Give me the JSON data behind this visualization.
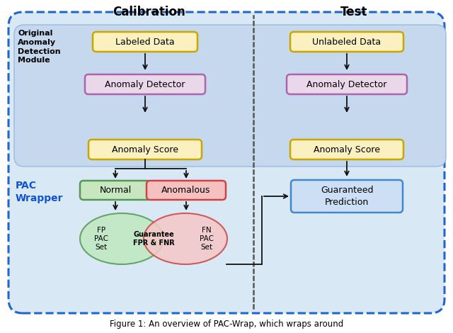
{
  "calibration_label": "Calibration",
  "test_label": "Test",
  "outer_bg_color": "#d8e8f5",
  "outer_border_color": "#2266cc",
  "inner_bg_color": "#c2d8ee",
  "inner_border_color": "#99bbdd",
  "labeled_data_text": "Labeled Data",
  "labeled_data_bg": "#faf0c0",
  "labeled_data_border": "#c8a800",
  "anomaly_detector_text": "Anomaly Detector",
  "anomaly_detector_bg": "#ead8ea",
  "anomaly_detector_border": "#aa66aa",
  "anomaly_score_text": "Anomaly Score",
  "anomaly_score_bg": "#faf0c0",
  "anomaly_score_border": "#c8a800",
  "unlabeled_data_text": "Unlabeled Data",
  "normal_text": "Normal",
  "normal_bg": "#c8e6c0",
  "normal_border": "#559955",
  "anomalous_text": "Anomalous",
  "anomalous_bg": "#f5c0c0",
  "anomalous_border": "#cc4444",
  "guaranteed_text": "Guaranteed\nPrediction",
  "guaranteed_bg": "#ccdff5",
  "guaranteed_border": "#4488cc",
  "fp_pac_text": "FP\nPAC\nSet",
  "fn_pac_text": "FN\nPAC\nSet",
  "guarantee_text": "Guarantee\nFPR & FNR",
  "ellipse_green_bg": "#c0e8c0",
  "ellipse_green_edge": "#559955",
  "ellipse_red_bg": "#f5c8c8",
  "ellipse_red_edge": "#cc4444",
  "original_module_text": "Original\nAnomaly\nDetection\nModule",
  "pac_wrapper_text": "PAC\nWrapper",
  "pac_wrapper_color": "#1155cc",
  "arrow_color": "#111111",
  "dotted_line_color": "#555555",
  "figure_caption": "Figure 1: An overview of PAC-Wrap, which wraps around"
}
